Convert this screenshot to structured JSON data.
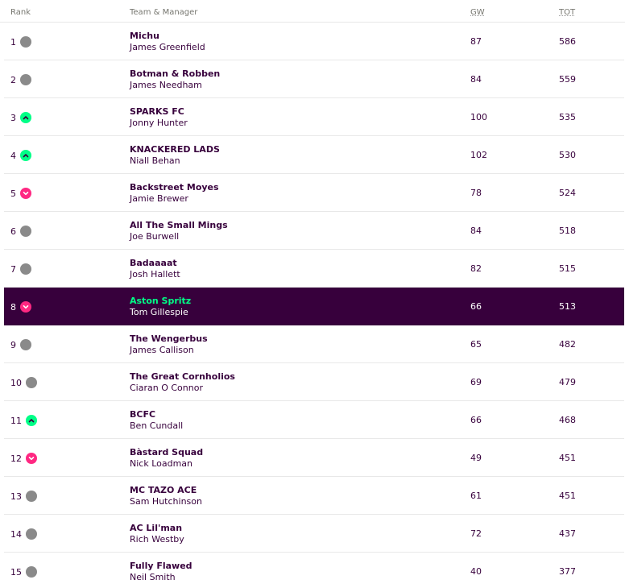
{
  "header": {
    "rank": "Rank",
    "team": "Team & Manager",
    "gw": "GW",
    "tot": "TOT"
  },
  "rows": [
    {
      "rank": "1",
      "move": "same",
      "team": "Michu",
      "manager": "James Greenfield",
      "gw": "87",
      "tot": "586",
      "highlight": false
    },
    {
      "rank": "2",
      "move": "same",
      "team": "Botman & Robben",
      "manager": "James Needham",
      "gw": "84",
      "tot": "559",
      "highlight": false
    },
    {
      "rank": "3",
      "move": "up",
      "team": "SPARKS FC",
      "manager": "Jonny Hunter",
      "gw": "100",
      "tot": "535",
      "highlight": false
    },
    {
      "rank": "4",
      "move": "up",
      "team": "KNACKERED LADS",
      "manager": "Niall Behan",
      "gw": "102",
      "tot": "530",
      "highlight": false
    },
    {
      "rank": "5",
      "move": "down",
      "team": "Backstreet Moyes",
      "manager": "Jamie Brewer",
      "gw": "78",
      "tot": "524",
      "highlight": false
    },
    {
      "rank": "6",
      "move": "same",
      "team": "All The Small Mings",
      "manager": "Joe Burwell",
      "gw": "84",
      "tot": "518",
      "highlight": false
    },
    {
      "rank": "7",
      "move": "same",
      "team": "Badaaaat",
      "manager": "Josh Hallett",
      "gw": "82",
      "tot": "515",
      "highlight": false
    },
    {
      "rank": "8",
      "move": "down",
      "team": "Aston Spritz",
      "manager": "Tom Gillespie",
      "gw": "66",
      "tot": "513",
      "highlight": true
    },
    {
      "rank": "9",
      "move": "same",
      "team": "The Wengerbus",
      "manager": "James Callison",
      "gw": "65",
      "tot": "482",
      "highlight": false
    },
    {
      "rank": "10",
      "move": "same",
      "team": "The Great Cornholios",
      "manager": "Ciaran O Connor",
      "gw": "69",
      "tot": "479",
      "highlight": false
    },
    {
      "rank": "11",
      "move": "up",
      "team": "BCFC",
      "manager": "Ben Cundall",
      "gw": "66",
      "tot": "468",
      "highlight": false
    },
    {
      "rank": "12",
      "move": "down",
      "team": "Bàstard Squad",
      "manager": "Nick Loadman",
      "gw": "49",
      "tot": "451",
      "highlight": false
    },
    {
      "rank": "13",
      "move": "same",
      "team": "MC TAZO ACE",
      "manager": "Sam Hutchinson",
      "gw": "61",
      "tot": "451",
      "highlight": false
    },
    {
      "rank": "14",
      "move": "same",
      "team": "AC Lil'man",
      "manager": "Rich Westby",
      "gw": "72",
      "tot": "437",
      "highlight": false
    },
    {
      "rank": "15",
      "move": "same",
      "team": "Fully Flawed",
      "manager": "Neil Smith",
      "gw": "40",
      "tot": "377",
      "highlight": false
    }
  ],
  "icons": {
    "same": "no-change-icon",
    "up": "rank-up-icon",
    "down": "rank-down-icon"
  },
  "colors": {
    "primary": "#37003c",
    "up": "#00ff87",
    "down": "#ff2882",
    "same": "#8a8a8a"
  }
}
